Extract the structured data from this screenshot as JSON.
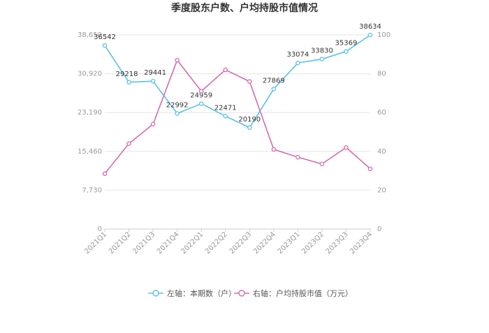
{
  "chart_data": {
    "type": "line",
    "title": "季度股东户数、户均持股市值情况",
    "categories": [
      "2021Q1",
      "2021Q2",
      "2021Q3",
      "2021Q4",
      "2022Q1",
      "2022Q2",
      "2022Q3",
      "2022Q4",
      "2023Q1",
      "2023Q2",
      "2023Q3",
      "2023Q4"
    ],
    "y_left": {
      "ticks": [
        "0",
        "7,730",
        "15,460",
        "23,190",
        "30,920",
        "38,650"
      ],
      "range": [
        0,
        38650
      ]
    },
    "y_right": {
      "ticks": [
        "0",
        "20",
        "40",
        "60",
        "80",
        "100"
      ],
      "range": [
        0,
        100
      ]
    },
    "series": [
      {
        "name": "左轴：本期数（户）",
        "axis": "left",
        "color": "#5bc0eb",
        "values": [
          36542,
          29218,
          29441,
          22992,
          24959,
          22471,
          20190,
          27869,
          33074,
          33830,
          35369,
          38634
        ],
        "labels": [
          "36542",
          "29218",
          "29441",
          "22992",
          "24959",
          "22471",
          "20190",
          "27869",
          "33074",
          "33830",
          "35369",
          "38634"
        ]
      },
      {
        "name": "右轴：户均持股市值（万元）",
        "axis": "right",
        "color": "#d36bb0",
        "values": [
          28.5,
          44,
          54,
          87,
          71,
          82,
          76,
          41,
          37,
          33.5,
          42,
          31
        ]
      }
    ],
    "grid": "horizontal",
    "legend_position": "bottom"
  }
}
